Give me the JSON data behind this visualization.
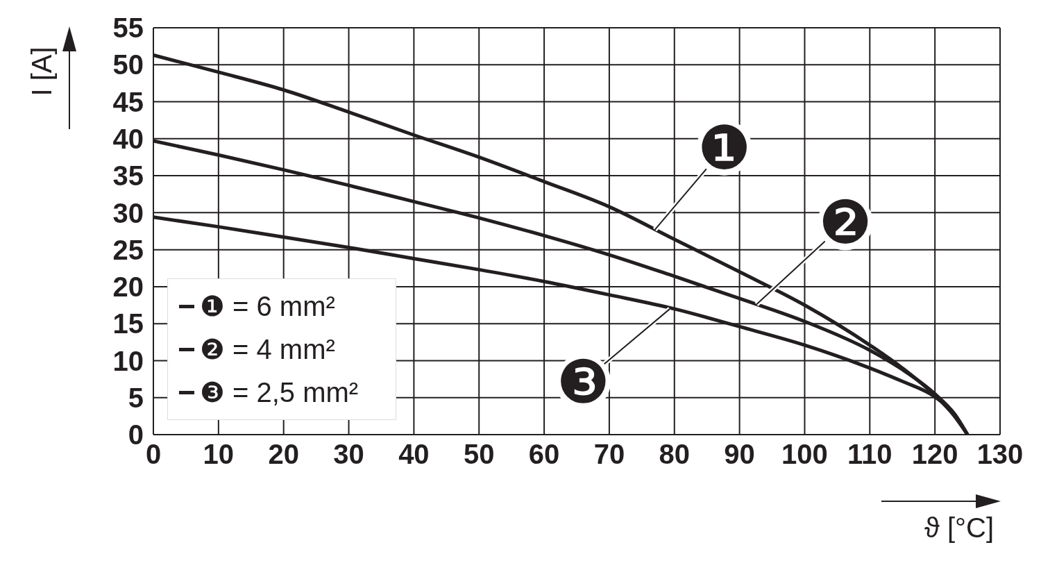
{
  "chart_data": {
    "type": "line",
    "xlabel": "ϑ [°C]",
    "ylabel": "I [A]",
    "xlim": [
      0,
      130
    ],
    "xticks": [
      0,
      10,
      20,
      30,
      40,
      50,
      60,
      70,
      80,
      90,
      100,
      110,
      120,
      130
    ],
    "ylim": [
      0,
      55
    ],
    "yticks": [
      0,
      5,
      10,
      15,
      20,
      25,
      30,
      35,
      40,
      45,
      50,
      55
    ],
    "grid": true,
    "legend": "bottom left",
    "marker": "none",
    "line_style": "solid",
    "series": [
      {
        "name": "❶ = 6 mm²",
        "color": "#231f20",
        "x": [
          0,
          10,
          20,
          30,
          40,
          50,
          60,
          70,
          80,
          90,
          100,
          110,
          115,
          120,
          123,
          125
        ],
        "values": [
          51.3,
          49,
          46.6,
          43.6,
          40.5,
          37.5,
          34.2,
          30.8,
          26.4,
          22,
          17.5,
          12.1,
          9,
          5.3,
          2.5,
          0
        ]
      },
      {
        "name": "❷ = 4 mm²",
        "color": "#231f20",
        "x": [
          0,
          10,
          20,
          30,
          40,
          50,
          60,
          70,
          80,
          90,
          100,
          110,
          115,
          120,
          123,
          125
        ],
        "values": [
          39.7,
          37.8,
          35.8,
          33.7,
          31.5,
          29.3,
          26.9,
          24.3,
          21.4,
          18.4,
          15.3,
          11.4,
          8.8,
          5.5,
          2.8,
          0
        ]
      },
      {
        "name": "❸ = 2,5 mm²",
        "color": "#231f20",
        "x": [
          0,
          10,
          20,
          30,
          40,
          50,
          60,
          70,
          80,
          90,
          100,
          110,
          115,
          120,
          123,
          125
        ],
        "values": [
          29.4,
          28.1,
          26.7,
          25.3,
          23.8,
          22.3,
          20.7,
          18.9,
          17,
          14.6,
          12.1,
          9,
          7.2,
          5.1,
          2.8,
          0
        ]
      }
    ],
    "annotations": [
      {
        "text": "❶",
        "x": 77,
        "y": 27.7
      },
      {
        "text": "❷",
        "x": 92.6,
        "y": 17.6
      },
      {
        "text": "❸",
        "x": 79.3,
        "y": 17
      }
    ]
  }
}
